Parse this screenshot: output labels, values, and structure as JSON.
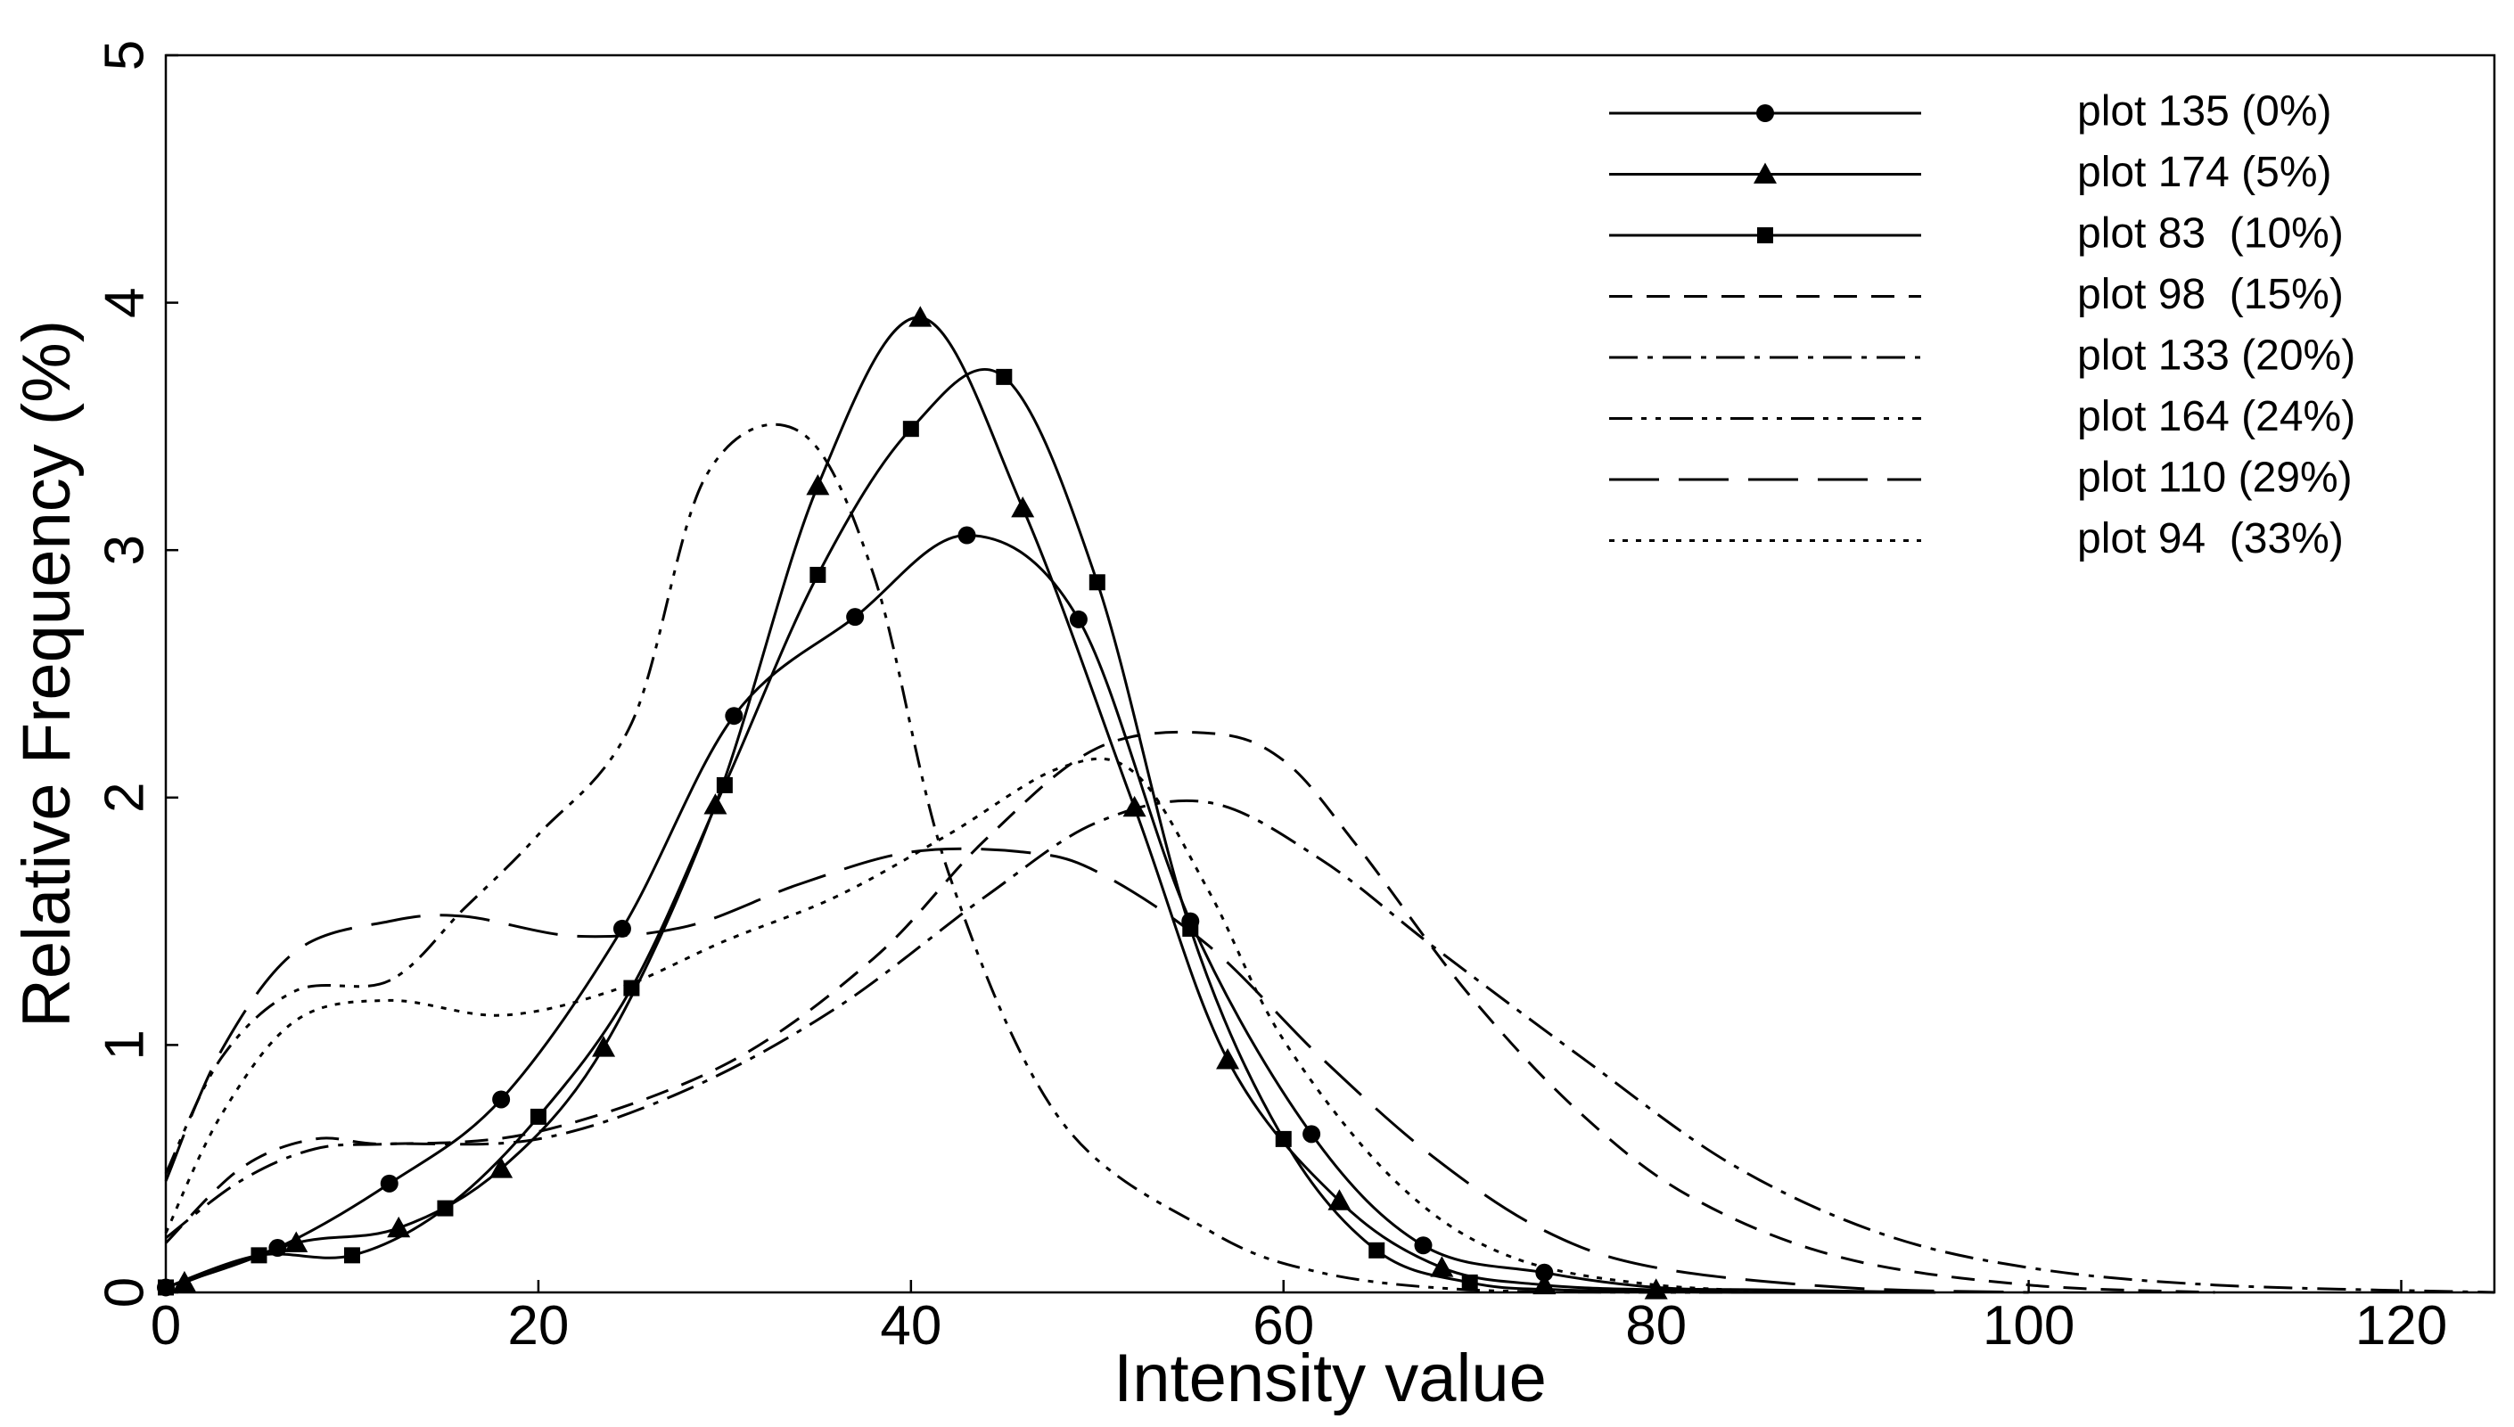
{
  "chart_data": {
    "type": "line",
    "title": "",
    "xlabel": "Intensity value",
    "ylabel": "Relative Frequency (%)",
    "xlim": [
      0,
      125
    ],
    "ylim": [
      0,
      5
    ],
    "xticks": [
      0,
      20,
      40,
      60,
      80,
      100,
      120
    ],
    "yticks": [
      0,
      1,
      2,
      3,
      4,
      5
    ],
    "xtick_labels": [
      "0",
      "20",
      "40",
      "60",
      "80",
      "100",
      "120"
    ],
    "ytick_labels": [
      "0",
      "1",
      "2",
      "3",
      "4",
      "5"
    ],
    "grid": false,
    "legend_position": "top-right",
    "series": [
      {
        "name": "plot 135 (0%)",
        "line_style": "solid",
        "marker": "circle",
        "x": [
          0,
          6,
          12,
          18,
          24.5,
          30.5,
          37,
          43,
          49,
          55,
          61.5,
          67.5,
          74,
          80,
          86,
          95
        ],
        "y": [
          0.02,
          0.18,
          0.44,
          0.78,
          1.47,
          2.33,
          2.73,
          3.06,
          2.72,
          1.5,
          0.64,
          0.19,
          0.08,
          0.02,
          0.01,
          0
        ],
        "markers_x": [
          0,
          6,
          12,
          18,
          24.5,
          30.5,
          37,
          43,
          49,
          55,
          61.5,
          67.5,
          74
        ],
        "markers_y": [
          0.02,
          0.18,
          0.44,
          0.78,
          1.47,
          2.33,
          2.73,
          3.06,
          2.72,
          1.5,
          0.64,
          0.19,
          0.08
        ]
      },
      {
        "name": "plot 174 (5%)",
        "line_style": "solid",
        "marker": "triangle",
        "x": [
          1,
          7,
          12.5,
          18,
          23.5,
          29.5,
          35,
          40.5,
          46,
          52,
          57,
          63,
          68.5,
          74,
          80,
          86,
          95
        ],
        "y": [
          0.04,
          0.2,
          0.26,
          0.5,
          0.99,
          1.97,
          3.26,
          3.94,
          3.17,
          1.96,
          0.94,
          0.37,
          0.1,
          0.03,
          0.01,
          0,
          0
        ],
        "markers_x": [
          1,
          7,
          12.5,
          18,
          23.5,
          29.5,
          35,
          40.5,
          46,
          52,
          57,
          63,
          68.5,
          74,
          80
        ],
        "markers_y": [
          0.04,
          0.2,
          0.26,
          0.5,
          0.99,
          1.97,
          3.26,
          3.94,
          3.17,
          1.96,
          0.94,
          0.37,
          0.1,
          0.03,
          0.01
        ]
      },
      {
        "name": "plot 83  (10%)",
        "line_style": "solid",
        "marker": "square",
        "x": [
          0,
          5,
          10,
          15,
          20,
          25,
          30,
          35,
          40,
          45,
          50,
          55,
          60,
          65,
          70,
          75,
          85,
          95
        ],
        "y": [
          0.02,
          0.15,
          0.15,
          0.34,
          0.71,
          1.23,
          2.05,
          2.9,
          3.49,
          3.7,
          2.87,
          1.47,
          0.62,
          0.17,
          0.04,
          0.01,
          0,
          0
        ],
        "markers_x": [
          0,
          5,
          10,
          15,
          20,
          25,
          30,
          35,
          40,
          45,
          50,
          55,
          60,
          65,
          70
        ],
        "markers_y": [
          0.02,
          0.15,
          0.15,
          0.34,
          0.71,
          1.23,
          2.05,
          2.9,
          3.49,
          3.7,
          2.87,
          1.47,
          0.62,
          0.17,
          0.04
        ]
      },
      {
        "name": "plot 98  (15%)",
        "line_style": "dash",
        "marker": "none",
        "x": [
          0,
          4,
          8,
          12,
          20,
          30,
          38,
          44,
          50,
          56,
          60,
          64,
          70,
          76,
          82,
          90,
          100,
          110
        ],
        "y": [
          0.2,
          0.5,
          0.62,
          0.6,
          0.65,
          0.92,
          1.35,
          1.83,
          2.2,
          2.26,
          2.15,
          1.8,
          1.2,
          0.72,
          0.38,
          0.14,
          0.03,
          0
        ]
      },
      {
        "name": "plot 133 (20%)",
        "line_style": "dashdot",
        "marker": "none",
        "x": [
          0,
          4,
          8,
          12,
          20,
          28,
          36,
          44,
          50,
          56,
          62,
          68,
          76,
          84,
          92,
          100,
          110,
          125
        ],
        "y": [
          0.22,
          0.45,
          0.58,
          0.6,
          0.62,
          0.82,
          1.15,
          1.6,
          1.9,
          1.98,
          1.75,
          1.4,
          0.95,
          0.52,
          0.24,
          0.1,
          0.03,
          0
        ]
      },
      {
        "name": "plot 164 (24%)",
        "line_style": "dashdotdot",
        "marker": "none",
        "x": [
          0,
          3,
          7,
          12,
          16,
          20,
          25,
          29,
          34,
          38,
          42,
          48,
          56,
          62,
          70,
          80,
          90
        ],
        "y": [
          0.48,
          0.95,
          1.22,
          1.26,
          1.55,
          1.85,
          2.3,
          3.3,
          3.48,
          2.9,
          1.7,
          0.7,
          0.25,
          0.08,
          0.01,
          0,
          0
        ]
      },
      {
        "name": "plot 110 (29%)",
        "line_style": "longdash",
        "marker": "none",
        "x": [
          0,
          3,
          7,
          12,
          16,
          22,
          28,
          34,
          40,
          46,
          50,
          56,
          62,
          68,
          74,
          80,
          90,
          100
        ],
        "y": [
          0.45,
          0.98,
          1.38,
          1.5,
          1.52,
          1.44,
          1.48,
          1.65,
          1.78,
          1.78,
          1.7,
          1.4,
          0.95,
          0.55,
          0.25,
          0.1,
          0.02,
          0
        ]
      },
      {
        "name": "plot 94  (33%)",
        "line_style": "dot",
        "marker": "none",
        "x": [
          0,
          3,
          7,
          12,
          18,
          24,
          30,
          36,
          42,
          48,
          52,
          56,
          60,
          66,
          72,
          80,
          90
        ],
        "y": [
          0.24,
          0.72,
          1.1,
          1.18,
          1.12,
          1.22,
          1.42,
          1.6,
          1.85,
          2.12,
          2.1,
          1.62,
          1.02,
          0.45,
          0.15,
          0.03,
          0
        ]
      }
    ]
  }
}
